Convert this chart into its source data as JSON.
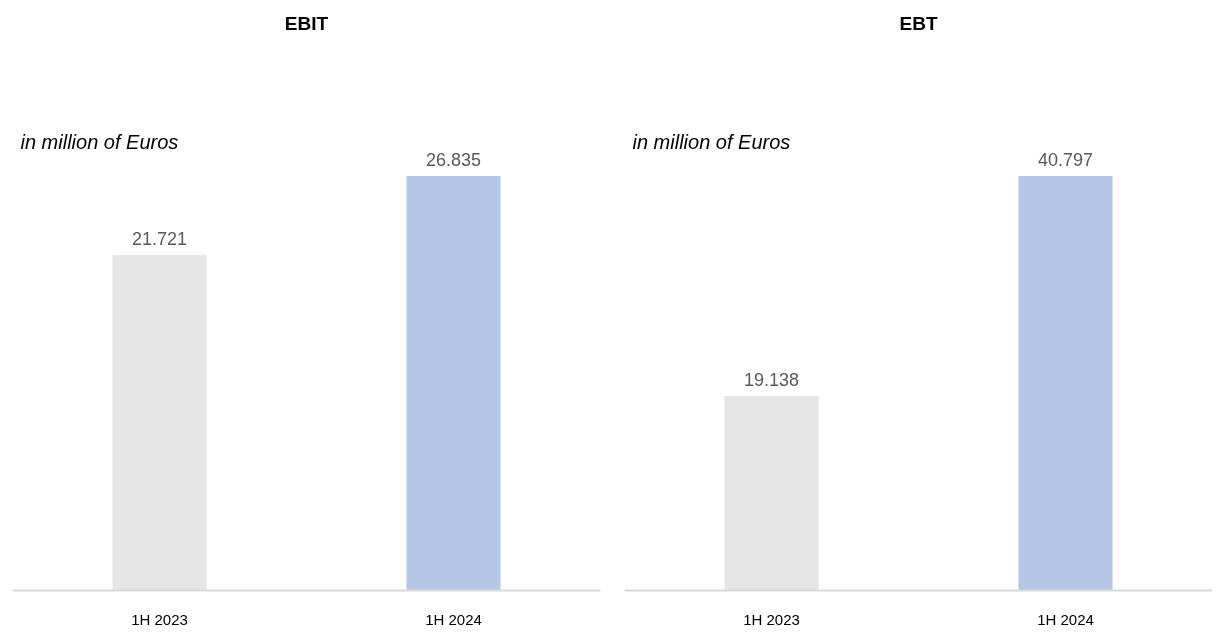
{
  "chart_data": [
    {
      "type": "bar",
      "title": "EBIT",
      "annotations": [
        "in million of Euros"
      ],
      "categories": [
        "1H 2023",
        "1H 2024"
      ],
      "values": [
        21.721,
        26.835
      ],
      "colors": [
        "#e7e6e6",
        "#b4c7e7"
      ],
      "data_labels": true
    },
    {
      "type": "bar",
      "title": "EBT",
      "annotations": [
        "in million of Euros"
      ],
      "categories": [
        "1H 2023",
        "1H 2024"
      ],
      "values": [
        19.138,
        40.797
      ],
      "colors": [
        "#e7e6e6",
        "#b4c7e7"
      ],
      "data_labels": true
    }
  ]
}
